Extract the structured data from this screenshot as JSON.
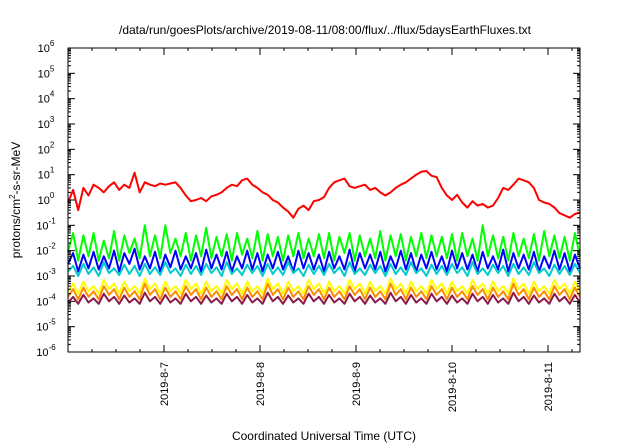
{
  "chart_data": {
    "type": "line",
    "title": "/data/run/goesPlots/archive/2019-08-11/08:00/flux/../flux/5daysEarthFluxes.txt",
    "xlabel": "Coordinated Universal Time (UTC)",
    "ylabel_parts": [
      "protons/cm",
      "2",
      "-s-sr-MeV"
    ],
    "y_scale": "log",
    "ylim": [
      1e-06,
      1000000.0
    ],
    "y_ticks": [
      {
        "base": "10",
        "exp": "-6"
      },
      {
        "base": "10",
        "exp": "-5"
      },
      {
        "base": "10",
        "exp": "-4"
      },
      {
        "base": "10",
        "exp": "-3"
      },
      {
        "base": "10",
        "exp": "-2"
      },
      {
        "base": "10",
        "exp": "-1"
      },
      {
        "base": "10",
        "exp": "0"
      },
      {
        "base": "10",
        "exp": "1"
      },
      {
        "base": "10",
        "exp": "2"
      },
      {
        "base": "10",
        "exp": "3"
      },
      {
        "base": "10",
        "exp": "4"
      },
      {
        "base": "10",
        "exp": "5"
      },
      {
        "base": "10",
        "exp": "6"
      }
    ],
    "xlim": [
      "2019-08-06T00:00",
      "2019-08-11T08:00"
    ],
    "x_ticks": [
      "2019-8-7",
      "2019-8-8",
      "2019-8-9",
      "2019-8-10",
      "2019-8-11"
    ],
    "grid": false,
    "series": [
      {
        "color": "#ff0000",
        "values": [
          0.8,
          2.5,
          0.4,
          3.0,
          1.5,
          4.0,
          3.0,
          2.0,
          3.5,
          5.0,
          2.5,
          4.0,
          3.0,
          12.0,
          2.0,
          5.0,
          4.0,
          3.5,
          4.5,
          4.0,
          4.5,
          5.0,
          3.0,
          1.5,
          0.9,
          1.0,
          1.2,
          0.9,
          1.4,
          1.6,
          2.0,
          3.0,
          4.0,
          3.5,
          6.0,
          7.0,
          4.0,
          3.0,
          2.0,
          1.6,
          1.0,
          0.8,
          0.5,
          0.35,
          0.2,
          0.45,
          0.6,
          0.4,
          0.9,
          1.0,
          1.3,
          3.0,
          5.0,
          6.0,
          7.0,
          3.5,
          3.0,
          3.5,
          4.0,
          2.5,
          3.0,
          2.0,
          1.5,
          2.0,
          3.0,
          4.0,
          5.0,
          7.0,
          10.0,
          13.0,
          14.0,
          9.0,
          8.0,
          3.0,
          1.5,
          1.0,
          1.6,
          0.8,
          0.5,
          0.9,
          0.6,
          0.7,
          0.5,
          0.6,
          1.2,
          3.0,
          2.5,
          4.0,
          7.0,
          6.0,
          5.0,
          3.0,
          1.0,
          0.8,
          0.7,
          0.5,
          0.3,
          0.25,
          0.2,
          0.28,
          0.32
        ]
      },
      {
        "color": "#00ff00",
        "values": [
          0.009,
          0.05,
          0.004,
          0.04,
          0.006,
          0.05,
          0.004,
          0.025,
          0.005,
          0.06,
          0.004,
          0.04,
          0.008,
          0.03,
          0.005,
          0.1,
          0.006,
          0.04,
          0.005,
          0.1,
          0.008,
          0.03,
          0.006,
          0.05,
          0.004,
          0.04,
          0.006,
          0.08,
          0.005,
          0.035,
          0.006,
          0.045,
          0.004,
          0.05,
          0.007,
          0.03,
          0.005,
          0.06,
          0.004,
          0.045,
          0.006,
          0.035,
          0.004,
          0.04,
          0.006,
          0.05,
          0.005,
          0.03,
          0.006,
          0.045,
          0.005,
          0.05,
          0.004,
          0.035,
          0.008,
          0.05,
          0.004,
          0.04,
          0.006,
          0.03,
          0.005,
          0.06,
          0.004,
          0.04,
          0.006,
          0.045,
          0.004,
          0.035,
          0.006,
          0.05,
          0.005,
          0.04,
          0.006,
          0.035,
          0.005,
          0.045,
          0.004,
          0.05,
          0.006,
          0.03,
          0.004,
          0.1,
          0.006,
          0.04,
          0.005,
          0.035,
          0.004,
          0.05,
          0.006,
          0.03,
          0.005,
          0.045,
          0.004,
          0.06,
          0.006,
          0.04,
          0.005,
          0.035,
          0.004,
          0.05,
          0.006
        ]
      },
      {
        "color": "#0000ff",
        "values": [
          0.003,
          0.008,
          0.0015,
          0.007,
          0.002,
          0.009,
          0.0018,
          0.006,
          0.002,
          0.01,
          0.0015,
          0.008,
          0.003,
          0.012,
          0.0018,
          0.006,
          0.002,
          0.009,
          0.0015,
          0.007,
          0.0022,
          0.01,
          0.0018,
          0.006,
          0.002,
          0.008,
          0.0015,
          0.011,
          0.002,
          0.007,
          0.0018,
          0.009,
          0.0015,
          0.006,
          0.002,
          0.01,
          0.0018,
          0.008,
          0.0015,
          0.007,
          0.002,
          0.009,
          0.0018,
          0.006,
          0.0015,
          0.01,
          0.002,
          0.008,
          0.0018,
          0.007,
          0.0015,
          0.009,
          0.002,
          0.006,
          0.0018,
          0.011,
          0.0015,
          0.008,
          0.002,
          0.007,
          0.0018,
          0.009,
          0.0015,
          0.006,
          0.002,
          0.01,
          0.0018,
          0.008,
          0.0015,
          0.007,
          0.002,
          0.009,
          0.0018,
          0.006,
          0.0015,
          0.01,
          0.002,
          0.008,
          0.0018,
          0.007,
          0.0015,
          0.009,
          0.002,
          0.006,
          0.0018,
          0.011,
          0.0015,
          0.008,
          0.002,
          0.007,
          0.0018,
          0.009,
          0.0015,
          0.006,
          0.002,
          0.01,
          0.0018,
          0.008,
          0.0015,
          0.007,
          0.002
        ]
      },
      {
        "color": "#00cccc",
        "values": [
          0.0015,
          0.0025,
          0.001,
          0.003,
          0.0012,
          0.0022,
          0.001,
          0.0035,
          0.0013,
          0.002,
          0.0011,
          0.0028,
          0.0012,
          0.0025,
          0.001,
          0.003,
          0.0012,
          0.0022,
          0.0011,
          0.0035,
          0.0013,
          0.002,
          0.001,
          0.0028,
          0.0012,
          0.0025,
          0.0011,
          0.003,
          0.0013,
          0.0022,
          0.001,
          0.0035,
          0.0012,
          0.002,
          0.0011,
          0.0028,
          0.0013,
          0.0025,
          0.001,
          0.003,
          0.0012,
          0.0022,
          0.0011,
          0.0035,
          0.0013,
          0.002,
          0.001,
          0.0028,
          0.0012,
          0.0025,
          0.0011,
          0.003,
          0.0013,
          0.0022,
          0.001,
          0.0035,
          0.0012,
          0.002,
          0.0011,
          0.0028,
          0.0013,
          0.0025,
          0.001,
          0.003,
          0.0012,
          0.0022,
          0.0011,
          0.0035,
          0.0013,
          0.002,
          0.001,
          0.0028,
          0.0012,
          0.0025,
          0.0011,
          0.003,
          0.0013,
          0.0022,
          0.001,
          0.0035,
          0.0012,
          0.002,
          0.0011,
          0.0028,
          0.0013,
          0.0025,
          0.001,
          0.003,
          0.0012,
          0.0022,
          0.0011,
          0.0035,
          0.0013,
          0.002,
          0.001,
          0.0028,
          0.0012,
          0.0025,
          0.0011,
          0.003,
          0.0013
        ]
      },
      {
        "color": "#ffff00",
        "values": [
          0.00025,
          0.0005,
          0.0002,
          0.0006,
          0.00025,
          0.0004,
          0.0002,
          0.0007,
          0.0003,
          0.0005,
          0.0002,
          0.0006,
          0.00025,
          0.0004,
          0.0002,
          0.0008,
          0.0003,
          0.0005,
          0.0002,
          0.0006,
          0.00025,
          0.0004,
          0.0002,
          0.0007,
          0.0003,
          0.0005,
          0.0002,
          0.0006,
          0.00025,
          0.0004,
          0.0002,
          0.0007,
          0.0003,
          0.0005,
          0.0002,
          0.0006,
          0.00025,
          0.0004,
          0.0002,
          0.0008,
          0.0003,
          0.0005,
          0.0002,
          0.0006,
          0.00025,
          0.0004,
          0.0002,
          0.0007,
          0.0003,
          0.0005,
          0.0002,
          0.0006,
          0.00025,
          0.0004,
          0.0002,
          0.0007,
          0.0003,
          0.0005,
          0.0002,
          0.0006,
          0.00025,
          0.0004,
          0.0002,
          0.0008,
          0.0003,
          0.0005,
          0.0002,
          0.0006,
          0.00025,
          0.0004,
          0.0002,
          0.0007,
          0.0003,
          0.0005,
          0.0002,
          0.0006,
          0.00025,
          0.0004,
          0.0002,
          0.0007,
          0.0003,
          0.0005,
          0.0002,
          0.0006,
          0.00025,
          0.0004,
          0.0002,
          0.0008,
          0.0003,
          0.0005,
          0.0002,
          0.0006,
          0.00025,
          0.0004,
          0.0002,
          0.0007,
          0.0003,
          0.0005,
          0.0002,
          0.0006,
          0.00025
        ]
      },
      {
        "color": "#ff8c00",
        "values": [
          0.00015,
          0.0003,
          0.00012,
          0.00035,
          0.00015,
          0.00025,
          0.00012,
          0.0004,
          0.00018,
          0.0003,
          0.00012,
          0.00035,
          0.00015,
          0.00025,
          0.00012,
          0.0005,
          0.00018,
          0.0003,
          0.00012,
          0.00035,
          0.00015,
          0.00025,
          0.00012,
          0.0004,
          0.00018,
          0.0003,
          0.00012,
          0.00035,
          0.00015,
          0.00025,
          0.00012,
          0.0004,
          0.00018,
          0.0003,
          0.00012,
          0.00035,
          0.00015,
          0.00025,
          0.00012,
          0.0005,
          0.00018,
          0.0003,
          0.00012,
          0.00035,
          0.00015,
          0.00025,
          0.00012,
          0.0004,
          0.00018,
          0.0003,
          0.00012,
          0.00035,
          0.00015,
          0.00025,
          0.00012,
          0.0004,
          0.00018,
          0.0003,
          0.00012,
          0.00035,
          0.00015,
          0.00025,
          0.00012,
          0.0005,
          0.00018,
          0.0003,
          0.00012,
          0.00035,
          0.00015,
          0.00025,
          0.00012,
          0.0004,
          0.00018,
          0.0003,
          0.00012,
          0.00035,
          0.00015,
          0.00025,
          0.00012,
          0.0004,
          0.00018,
          0.0003,
          0.00012,
          0.00035,
          0.00015,
          0.00025,
          0.00012,
          0.0005,
          0.00018,
          0.0003,
          0.00012,
          0.00035,
          0.00015,
          0.00025,
          0.00012,
          0.0004,
          0.00018,
          0.0003,
          0.00012,
          0.00035,
          0.00015
        ]
      },
      {
        "color": "#8b1a4a",
        "values": [
          9e-05,
          0.00015,
          8e-05,
          0.00018,
          9e-05,
          0.00013,
          8e-05,
          0.0002,
          0.0001,
          0.00015,
          8e-05,
          0.00017,
          9e-05,
          0.00013,
          8e-05,
          0.00022,
          0.0001,
          0.00015,
          8e-05,
          0.00018,
          9e-05,
          0.00013,
          8e-05,
          0.0002,
          0.0001,
          0.00015,
          8e-05,
          0.00017,
          9e-05,
          0.00013,
          8e-05,
          0.0002,
          0.0001,
          0.00015,
          8e-05,
          0.00018,
          9e-05,
          0.00013,
          8e-05,
          0.00022,
          0.0001,
          0.00015,
          8e-05,
          0.00017,
          9e-05,
          0.00013,
          8e-05,
          0.0002,
          0.0001,
          0.00015,
          8e-05,
          0.00018,
          9e-05,
          0.00013,
          8e-05,
          0.0002,
          0.0001,
          0.00015,
          8e-05,
          0.00017,
          9e-05,
          0.00013,
          8e-05,
          0.00022,
          0.0001,
          0.00015,
          8e-05,
          0.00018,
          9e-05,
          0.00013,
          8e-05,
          0.0002,
          0.0001,
          0.00015,
          8e-05,
          0.00017,
          9e-05,
          0.00013,
          8e-05,
          0.0002,
          0.0001,
          0.00015,
          8e-05,
          0.00018,
          9e-05,
          0.00013,
          8e-05,
          0.00022,
          0.0001,
          0.00015,
          8e-05,
          0.00017,
          9e-05,
          0.00013,
          8e-05,
          0.0002,
          0.0001,
          0.00015,
          8e-05,
          0.00018,
          9e-05
        ]
      }
    ]
  }
}
